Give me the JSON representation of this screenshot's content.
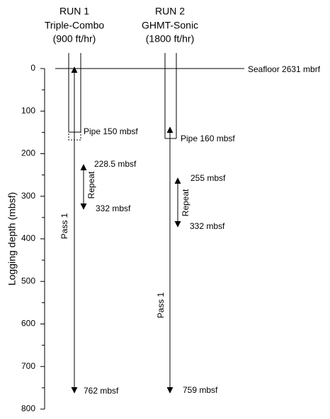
{
  "axis": {
    "label": "Logging depth (mbsf)",
    "ylim": [
      0,
      800
    ],
    "yticks": [
      0,
      100,
      200,
      300,
      400,
      500,
      600,
      700,
      800
    ]
  },
  "seafloor": "Seafloor 2631 mbrf",
  "runs": [
    {
      "title": "RUN 1",
      "tool": "Triple-Combo",
      "speed": "(900 ft/hr)",
      "pipe": "Pipe 150 mbsf",
      "pass": "Pass 1",
      "repeat": "Repeat",
      "repeat_top": "228.5 mbsf",
      "repeat_bottom": "332 mbsf",
      "bottom": "762 mbsf"
    },
    {
      "title": "RUN 2",
      "tool": "GHMT-Sonic",
      "speed": "(1800 ft/hr)",
      "pipe": "Pipe 160 mbsf",
      "pass": "Pass 1",
      "repeat": "Repeat",
      "repeat_top": "255 mbsf",
      "repeat_bottom": "332 mbsf",
      "bottom": "759 mbsf"
    }
  ]
}
